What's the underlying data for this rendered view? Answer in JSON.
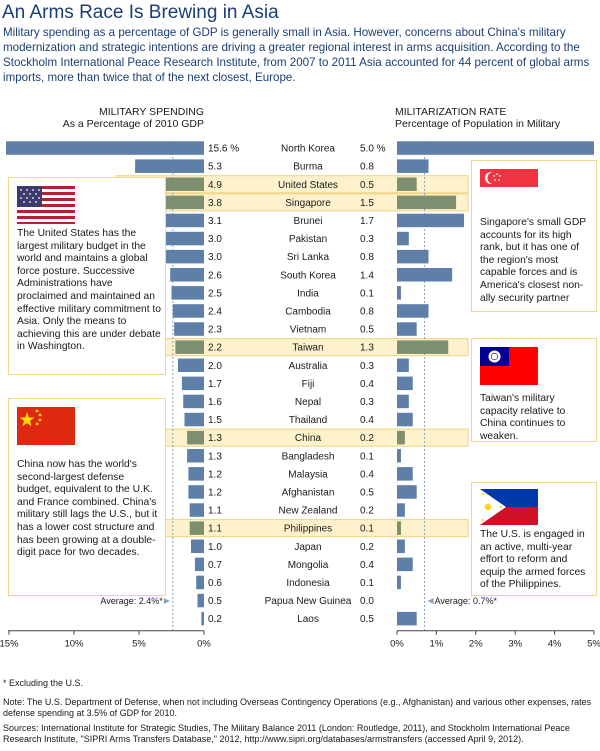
{
  "title": "An Arms Race Is Brewing in Asia",
  "intro": "Military spending as a percentage of GDP is generally small in Asia.  However, concerns about China's military modernization and strategic intentions are driving a greater regional interest in arms acquisition. According to the Stockholm International Peace Research Institute, from 2007 to 2011 Asia accounted for 44 percent of global arms imports, more than twice that of the next closest, Europe.",
  "left_header": {
    "line1": "MILITARY SPENDING",
    "line2": "As a Percentage of 2010 GDP"
  },
  "right_header": {
    "line1": "MILITARIZATION RATE",
    "line2": "Percentage of Population in Military"
  },
  "chart_data": {
    "type": "bar",
    "countries": [
      "North Korea",
      "Burma",
      "United States",
      "Singapore",
      "Brunei",
      "Pakistan",
      "Sri Lanka",
      "South Korea",
      "India",
      "Cambodia",
      "Vietnam",
      "Taiwan",
      "Australia",
      "Fiji",
      "Nepal",
      "Thailand",
      "China",
      "Bangladesh",
      "Malaysia",
      "Afghanistan",
      "New Zealand",
      "Philippines",
      "Japan",
      "Mongolia",
      "Indonesia",
      "Papua New Guinea",
      "Laos"
    ],
    "highlighted": [
      "United States",
      "Singapore",
      "Taiwan",
      "China",
      "Philippines"
    ],
    "spending": {
      "name": "MILITARY SPENDING",
      "values": [
        15.6,
        5.3,
        4.9,
        3.8,
        3.1,
        3.0,
        3.0,
        2.6,
        2.5,
        2.4,
        2.3,
        2.2,
        2.0,
        1.7,
        1.6,
        1.5,
        1.3,
        1.3,
        1.2,
        1.2,
        1.1,
        1.1,
        1.0,
        0.7,
        0.6,
        0.5,
        0.2
      ],
      "labels": [
        "15.6 %",
        "5.3",
        "4.9",
        "3.8",
        "3.1",
        "3.0",
        "3.0",
        "2.6",
        "2.5",
        "2.4",
        "2.3",
        "2.2",
        "2.0",
        "1.7",
        "1.6",
        "1.5",
        "1.3",
        "1.3",
        "1.2",
        "1.2",
        "1.1",
        "1.1",
        "1.0",
        "0.7",
        "0.6",
        "0.5",
        "0.2"
      ],
      "xlim": [
        15,
        0
      ],
      "ticks": [
        "15%",
        "10%",
        "5%",
        "0%"
      ],
      "average": 2.4,
      "average_label": "Average: 2.4%*"
    },
    "militarization": {
      "name": "MILITARIZATION RATE",
      "values": [
        5.0,
        0.8,
        0.5,
        1.5,
        1.7,
        0.3,
        0.8,
        1.4,
        0.1,
        0.8,
        0.5,
        1.3,
        0.3,
        0.4,
        0.3,
        0.4,
        0.2,
        0.1,
        0.4,
        0.5,
        0.2,
        0.1,
        0.2,
        0.4,
        0.1,
        0.0,
        0.5
      ],
      "labels": [
        "5.0 %",
        "0.8",
        "0.5",
        "1.5",
        "1.7",
        "0.3",
        "0.8",
        "1.4",
        "0.1",
        "0.8",
        "0.5",
        "1.3",
        "0.3",
        "0.4",
        "0.3",
        "0.4",
        "0.2",
        "0.1",
        "0.4",
        "0.5",
        "0.2",
        "0.1",
        "0.2",
        "0.4",
        "0.1",
        "0.0",
        "0.5"
      ],
      "xlim": [
        0,
        5
      ],
      "ticks": [
        "0%",
        "1%",
        "2%",
        "3%",
        "4%",
        "5%"
      ],
      "average": 0.7,
      "average_label": "Average: 0.7%*"
    },
    "colors": {
      "bar": "#5d7fa8",
      "bar_highlight": "#7d8f6e",
      "highlight_band": "#fdf2cc",
      "highlight_border": "#f0d37d",
      "average_line": "#8aa2c0"
    }
  },
  "callouts": {
    "us": {
      "flag": "us-flag-icon",
      "text": "The United States has the largest military budget in the world and maintains a global force posture. Successive Administrations have proclaimed and maintained an effective military commitment to Asia. Only the means to achieving this are under debate in Washington."
    },
    "china": {
      "flag": "china-flag-icon",
      "text": "China now has the world's second-largest defense budget, equivalent to the U.K. and France combined. China's military still lags the U.S., but it has a lower cost structure and has been growing at a double-digit pace for two decades."
    },
    "singapore": {
      "flag": "singapore-flag-icon",
      "text": "Singapore's small GDP accounts for its high rank, but it has one of the region's most capable forces and is America's closest non-ally security partner"
    },
    "taiwan": {
      "flag": "taiwan-flag-icon",
      "text": "Taiwan's military capacity relative to China continues to weaken."
    },
    "philippines": {
      "flag": "philippines-flag-icon",
      "text": "The U.S. is engaged in an active, multi-year effort to reform and equip the armed forces of the Philippines."
    }
  },
  "footnote": "* Excluding the U.S.",
  "note": "Note: The U.S. Department of Defense, when not including Overseas Contingency Operations (e.g., Afghanistan) and various other expenses, rates defense spending at 3.5% of GDP for 2010.",
  "sources": "Sources: International Institute for Strategic Studies, The Military Balance 2011 (London: Routledge, 2011), and Stockholm International Peace Research Institute, \"SIPRI Arms Transfers Database,\" 2012,  http://www.sipri.org/databases/armstransfers (accessed April 9, 2012)."
}
